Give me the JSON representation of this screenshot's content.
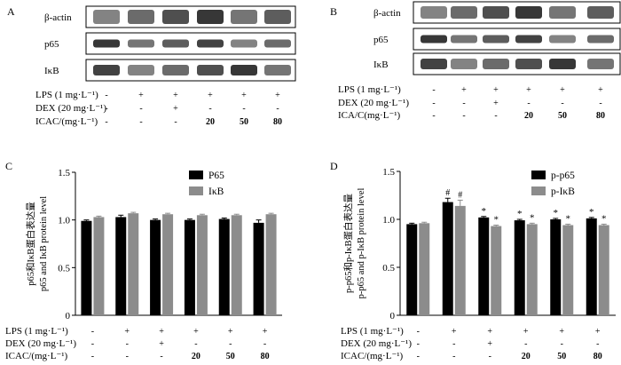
{
  "panels": {
    "A": {
      "letter": "A",
      "bands": [
        "β-actin",
        "p65",
        "IκB"
      ],
      "conditions": [
        {
          "label": "LPS (1 mg·L⁻¹)",
          "values": [
            "-",
            "+",
            "+",
            "+",
            "+",
            "+"
          ]
        },
        {
          "label": "DEX (20 mg·L⁻¹)",
          "values": [
            "-",
            "-",
            "+",
            "-",
            "-",
            "-"
          ]
        },
        {
          "label": "ICAC/(mg·L⁻¹)",
          "values": [
            "-",
            "-",
            "-",
            "20",
            "50",
            "80"
          ]
        }
      ]
    },
    "B": {
      "letter": "B",
      "bands": [
        "β-actin",
        "p65",
        "IκB"
      ],
      "conditions": [
        {
          "label": "LPS (1 mg·L⁻¹)",
          "values": [
            "-",
            "+",
            "+",
            "+",
            "+",
            "+"
          ]
        },
        {
          "label": "DEX (20 mg·L⁻¹)",
          "values": [
            "-",
            "-",
            "+",
            "-",
            "-",
            "-"
          ]
        },
        {
          "label": "ICA/C(mg·L⁻¹)",
          "values": [
            "-",
            "-",
            "-",
            "20",
            "50",
            "80"
          ]
        }
      ]
    },
    "C": {
      "letter": "C",
      "conditions": [
        {
          "label": "LPS (1 mg·L⁻¹)",
          "values": [
            "-",
            "+",
            "+",
            "+",
            "+",
            "+"
          ]
        },
        {
          "label": "DEX (20 mg·L⁻¹)",
          "values": [
            "-",
            "-",
            "+",
            "-",
            "-",
            "-"
          ]
        },
        {
          "label": "ICAC/(mg·L⁻¹)",
          "values": [
            "-",
            "-",
            "-",
            "20",
            "50",
            "80"
          ]
        }
      ]
    },
    "D": {
      "letter": "D",
      "conditions": [
        {
          "label": "LPS (1 mg·L⁻¹)",
          "values": [
            "-",
            "+",
            "+",
            "+",
            "+",
            "+"
          ]
        },
        {
          "label": "DEX (20 mg·L⁻¹)",
          "values": [
            "-",
            "-",
            "+",
            "-",
            "-",
            "-"
          ]
        },
        {
          "label": "ICAC/(mg·L⁻¹)",
          "values": [
            "-",
            "-",
            "-",
            "20",
            "50",
            "80"
          ]
        }
      ]
    }
  },
  "colors": {
    "series1": "#000000",
    "series2": "#8c8c8c",
    "axis": "#000000",
    "band": "#1e1e1e"
  },
  "chart_data": [
    {
      "panel": "C",
      "type": "bar",
      "ylabel_cn": "p65和IκB蛋白表达量",
      "ylabel": "p65 and IκB protein level",
      "ylim": [
        0,
        1.5
      ],
      "yticks": [
        "0",
        "0.5",
        "1.0",
        "1.5"
      ],
      "grid": false,
      "legend": "top-right",
      "series": [
        {
          "name": "P65",
          "values": [
            0.99,
            1.03,
            1.0,
            1.0,
            1.01,
            0.97
          ],
          "errors": [
            0.01,
            0.02,
            0.01,
            0.01,
            0.01,
            0.03
          ]
        },
        {
          "name": "IκB",
          "values": [
            1.03,
            1.07,
            1.06,
            1.05,
            1.05,
            1.06
          ],
          "errors": [
            0.01,
            0.01,
            0.01,
            0.01,
            0.01,
            0.01
          ]
        }
      ],
      "annotations": [
        [],
        [],
        [],
        [],
        [],
        []
      ]
    },
    {
      "panel": "D",
      "type": "bar",
      "ylabel_cn": "p-p65和p-IκB蛋白表达量",
      "ylabel": "p-p65 and p-IκB protein level",
      "ylim": [
        0,
        1.5
      ],
      "yticks": [
        "0",
        "0.5",
        "1.0",
        "1.5"
      ],
      "grid": false,
      "legend": "top-right",
      "series": [
        {
          "name": "p-p65",
          "values": [
            0.95,
            1.18,
            1.02,
            0.99,
            1.0,
            1.01
          ],
          "errors": [
            0.01,
            0.04,
            0.01,
            0.01,
            0.01,
            0.01
          ]
        },
        {
          "name": "p-IκB",
          "values": [
            0.96,
            1.14,
            0.93,
            0.95,
            0.94,
            0.94
          ],
          "errors": [
            0.01,
            0.06,
            0.01,
            0.01,
            0.01,
            0.01
          ]
        }
      ],
      "annotations": [
        [
          "",
          ""
        ],
        [
          "#",
          "#"
        ],
        [
          "*",
          "*"
        ],
        [
          "*",
          "*"
        ],
        [
          "*",
          "*"
        ],
        [
          "*",
          "*"
        ]
      ]
    }
  ]
}
